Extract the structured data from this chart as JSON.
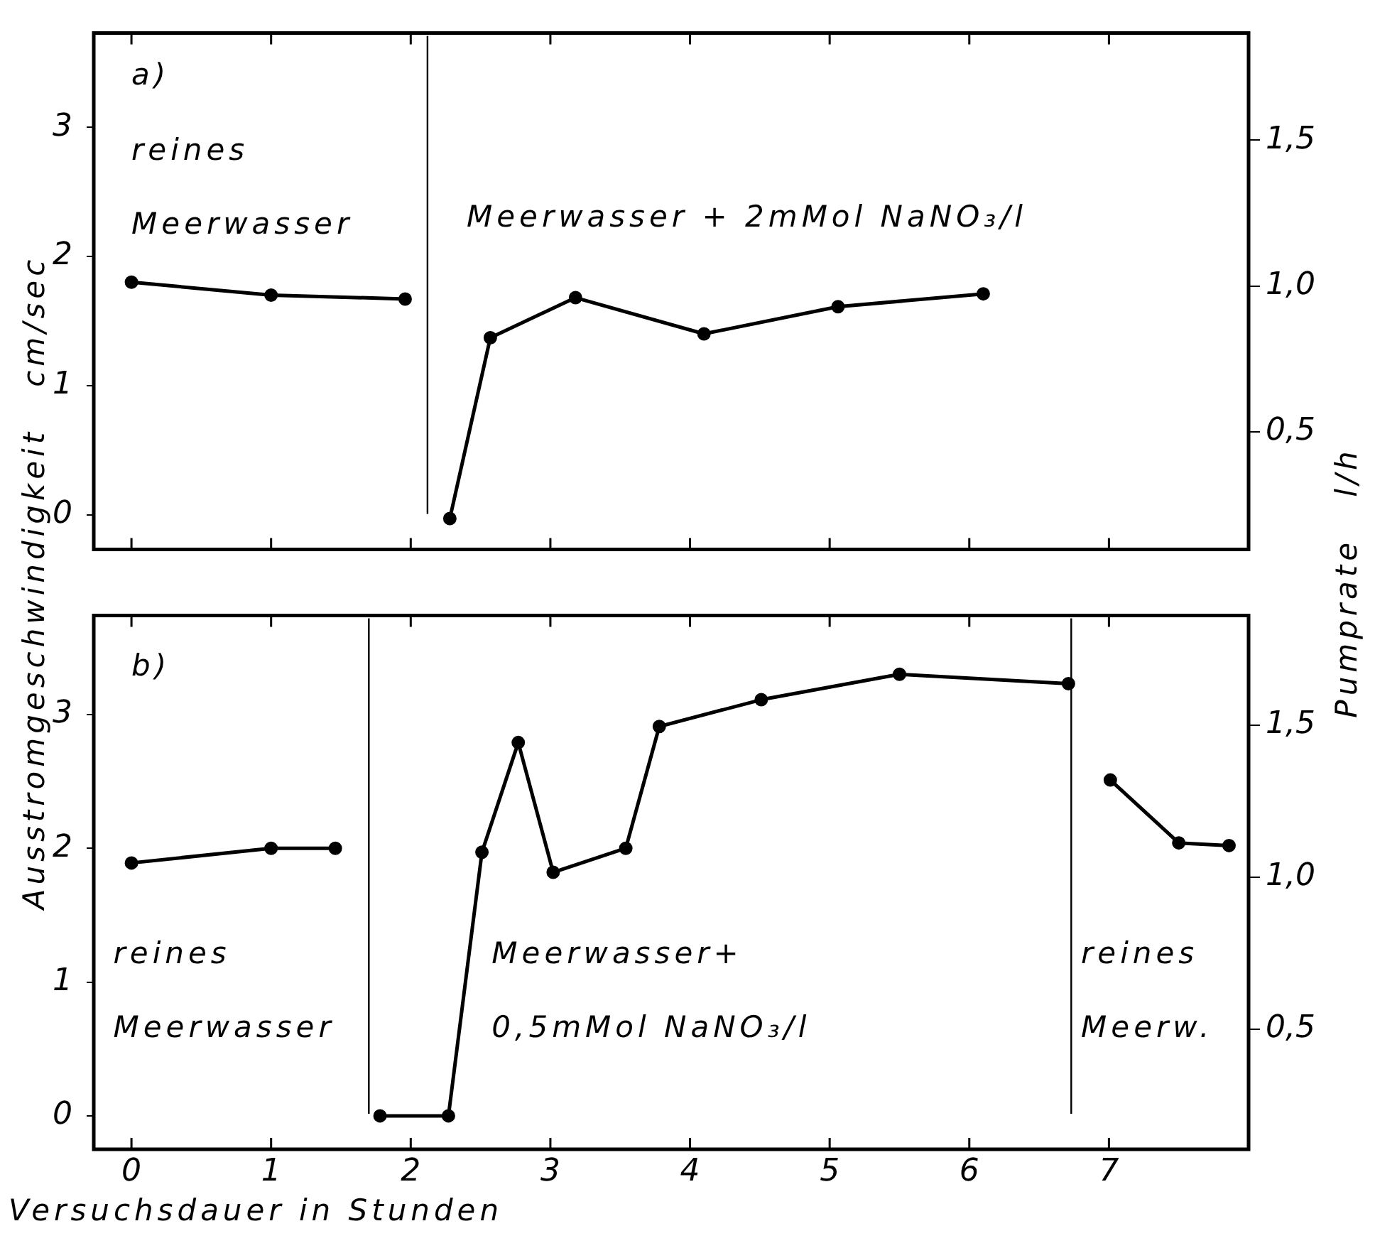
{
  "chart_data": [
    {
      "type": "line",
      "ylabel": "Ausstromgeschwindigkeit   cm/sec",
      "y2label": "Pumprate   l/h",
      "series": [
        {
          "color": "#000000",
          "x": [
            0,
            1,
            1.96
          ],
          "values": [
            1.8,
            1.7,
            1.67
          ]
        },
        {
          "color": "#000000",
          "x": [
            2.28,
            2.57,
            3.18,
            4.1,
            5.06,
            6.1
          ],
          "values": [
            -0.03,
            1.37,
            1.68,
            1.4,
            1.61,
            1.71
          ]
        }
      ],
      "xlim": [
        -0.27,
        8.0
      ],
      "xticks": [
        {
          "value": 0,
          "label": null
        },
        {
          "value": 1,
          "label": null
        },
        {
          "value": 2,
          "label": null
        },
        {
          "value": 3,
          "label": null
        },
        {
          "value": 4,
          "label": null
        },
        {
          "value": 5,
          "label": null
        },
        {
          "value": 6,
          "label": null
        },
        {
          "value": 7,
          "label": null
        }
      ],
      "ylim": [
        -0.27,
        3.73
      ],
      "yticks": [
        0,
        1,
        2,
        3
      ],
      "y2lim": [
        0.097,
        1.867
      ],
      "y2ticks": [
        {
          "value": 0.5,
          "label": "0,5"
        },
        {
          "value": 1.0,
          "label": "1,0"
        },
        {
          "value": 1.5,
          "label": "1,5"
        }
      ],
      "ref_lines": [
        {
          "axis": "x",
          "value": 2.12,
          "color": "#000000"
        }
      ],
      "annotations": [
        "a)",
        "reines\nMeerwasser",
        "Meerwasser + 2mMol NaNO₃/l"
      ],
      "marker": "circle",
      "line_style": "solid",
      "grid": false,
      "legend": false,
      "tick_labels": "y"
    },
    {
      "type": "line",
      "xlabel": "Versuchsdauer in Stunden",
      "series": [
        {
          "color": "#000000",
          "x": [
            0,
            1,
            1.46
          ],
          "values": [
            1.89,
            2.0,
            2.0
          ]
        },
        {
          "color": "#000000",
          "x": [
            1.78,
            2.27,
            2.51,
            2.77,
            3.02,
            3.54,
            3.78,
            4.51,
            5.5,
            6.71
          ],
          "values": [
            0,
            0,
            1.97,
            2.79,
            1.82,
            2.0,
            2.91,
            3.11,
            3.3,
            3.23
          ]
        },
        {
          "color": "#000000",
          "x": [
            7.01,
            7.5,
            7.86
          ],
          "values": [
            2.51,
            2.04,
            2.02
          ]
        }
      ],
      "xlim": [
        -0.27,
        8.0
      ],
      "xticks": [
        0,
        1,
        2,
        3,
        4,
        5,
        6,
        7
      ],
      "ylim": [
        -0.25,
        3.74
      ],
      "yticks": [
        0,
        1,
        2,
        3
      ],
      "y2lim": [
        0.104,
        1.861
      ],
      "y2ticks": [
        {
          "value": 0.5,
          "label": "0,5"
        },
        {
          "value": 1.0,
          "label": "1,0"
        },
        {
          "value": 1.5,
          "label": "1,5"
        }
      ],
      "ref_lines": [
        {
          "axis": "x",
          "value": 1.7,
          "color": "#000000"
        },
        {
          "axis": "x",
          "value": 6.73,
          "color": "#000000"
        }
      ],
      "annotations": [
        "b)",
        "reines\nMeerwasser",
        "Meerwasser+\n0,5mMol NaNO₃/l",
        "reines\nMeerw."
      ],
      "marker": "circle",
      "line_style": "solid",
      "grid": false,
      "legend": false
    }
  ]
}
